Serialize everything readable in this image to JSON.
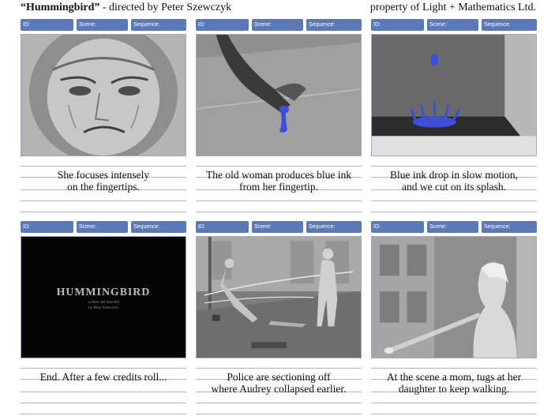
{
  "header": {
    "title_bold": "“Hummingbird”",
    "title_rest": " - directed by Peter Szewczyk",
    "copyright": "property of Light + Mathematics Ltd."
  },
  "tab_labels": {
    "id": "ID:",
    "scene": "Scene:",
    "sequence": "Sequence:"
  },
  "panels": [
    {
      "caption_line1": "She focuses intensely",
      "caption_line2": "on the fingertips."
    },
    {
      "caption_line1": "The old woman produces blue ink",
      "caption_line2": "from her fingertip."
    },
    {
      "caption_line1": "Blue ink drop in slow motion,",
      "caption_line2": "and we cut on its splash."
    },
    {
      "caption_line1": "End. After a few credits roll...",
      "caption_line2": ""
    },
    {
      "caption_line1": "Police are sectioning off",
      "caption_line2": "where Audrey collapsed earlier."
    },
    {
      "caption_line1": "At the scene a mom, tugs at her",
      "caption_line2": "daughter to keep walking."
    }
  ],
  "title_card": {
    "title": "HUMMINGBIRD",
    "credit_line1": "written and directed",
    "credit_line2": "by Peter Szewczyk"
  },
  "colors": {
    "tab_blue": "#5b79b6",
    "ink_blue": "#3b4fd8"
  }
}
